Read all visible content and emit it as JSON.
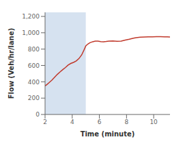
{
  "chart_data": {
    "type": "line",
    "title": "",
    "xlabel": "Time (minute)",
    "ylabel": "Flow (Veh/hr/lane)",
    "xlim": [
      2,
      11.2
    ],
    "ylim": [
      0,
      1250
    ],
    "xticks": [
      2,
      4,
      6,
      8,
      10
    ],
    "yticks": [
      0,
      200,
      400,
      600,
      800,
      {
        "value": 1000,
        "label": "1,000"
      },
      {
        "value": 1200,
        "label": "1,200"
      }
    ],
    "grid": false,
    "span": {
      "xstart": 2,
      "xend": 5,
      "color": "#cfdded"
    },
    "x": [
      2.0,
      2.15,
      2.3,
      2.5,
      2.7,
      2.9,
      3.1,
      3.3,
      3.5,
      3.7,
      3.9,
      4.1,
      4.3,
      4.5,
      4.7,
      4.9,
      5.0,
      5.15,
      5.3,
      5.5,
      5.7,
      5.9,
      6.1,
      6.3,
      6.5,
      6.7,
      7.0,
      7.3,
      7.6,
      7.9,
      8.2,
      8.5,
      8.7,
      9.0,
      9.3,
      9.6,
      9.9,
      10.2,
      10.5,
      10.8,
      11.0,
      11.2
    ],
    "values": [
      350,
      368,
      390,
      420,
      455,
      490,
      520,
      548,
      575,
      605,
      625,
      638,
      655,
      685,
      730,
      800,
      840,
      862,
      878,
      890,
      898,
      898,
      892,
      890,
      893,
      898,
      900,
      895,
      898,
      910,
      920,
      933,
      940,
      945,
      948,
      950,
      950,
      952,
      952,
      950,
      950,
      948
    ],
    "color": "#c0392b"
  }
}
